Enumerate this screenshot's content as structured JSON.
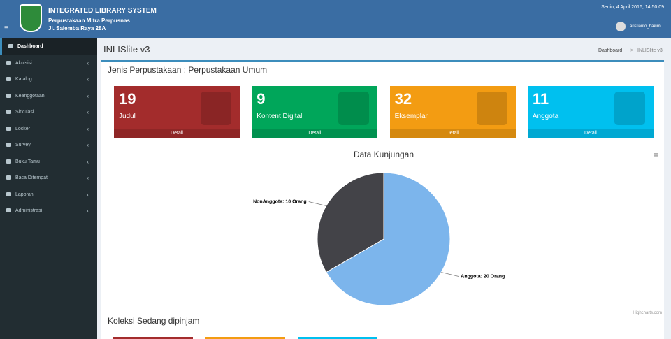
{
  "header": {
    "title": "INTEGRATED LIBRARY SYSTEM",
    "subtitle": "Perpustakaan Mitra Perpusnas",
    "address": "Jl. Salemba Raya 28A",
    "datetime": "Senin, 4 April 2016, 14:50:09",
    "user": "aristianto_hakim"
  },
  "sidebar": {
    "items": [
      "Dashboard",
      "Akuisisi",
      "Katalog",
      "Keanggotaan",
      "Sirkulasi",
      "Locker",
      "Survey",
      "Buku Tamu",
      "Baca Ditempat",
      "Laporan",
      "Administrasi"
    ]
  },
  "content": {
    "title": "INLISlite v3",
    "breadcrumb": [
      "Dashboard",
      "INLISlite v3"
    ],
    "section_title": "Jenis Perpustakaan : Perpustakaan Umum",
    "boxes": [
      {
        "value": 19,
        "label": "Judul",
        "link": "Detail",
        "color": "#a32c2c"
      },
      {
        "value": 9,
        "label": "Kontent Digital",
        "link": "Detail",
        "color": "#00a65a"
      },
      {
        "value": 32,
        "label": "Eksemplar",
        "link": "Detail",
        "color": "#f39c12"
      },
      {
        "value": 11,
        "label": "Anggota",
        "link": "Detail",
        "color": "#00c0ef"
      }
    ],
    "chart": {
      "type": "pie",
      "title": "Data Kunjungan",
      "categories": [
        "Anggota",
        "NonAnggota"
      ],
      "values": [
        20,
        10
      ],
      "value_labels": [
        "Anggota: 20 Orang",
        "NonAnggota: 10 Orang"
      ],
      "colors": [
        "#7cb5ec",
        "#434348"
      ],
      "credit": "Highcharts.com"
    },
    "section2_title": "Koleksi Sedang dipinjam"
  }
}
